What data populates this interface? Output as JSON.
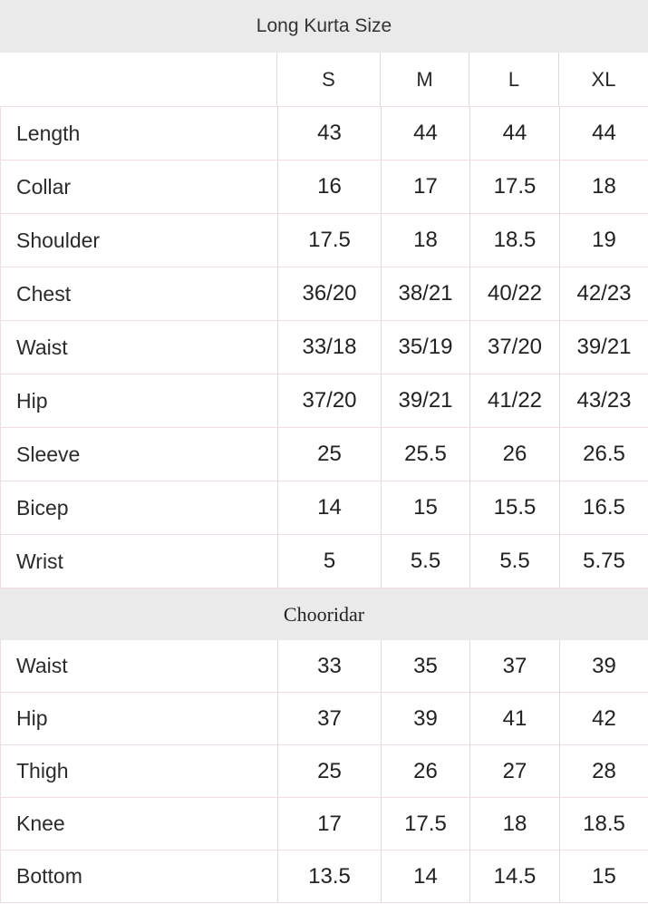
{
  "chart_data": [
    {
      "type": "table",
      "title": "Long Kurta Size",
      "columns": [
        "",
        "S",
        "M",
        "L",
        "XL"
      ],
      "rows": [
        {
          "label": "Length",
          "values": [
            "43",
            "44",
            "44",
            "44"
          ]
        },
        {
          "label": "Collar",
          "values": [
            "16",
            "17",
            "17.5",
            "18"
          ]
        },
        {
          "label": "Shoulder",
          "values": [
            "17.5",
            "18",
            "18.5",
            "19"
          ]
        },
        {
          "label": "Chest",
          "values": [
            "36/20",
            "38/21",
            "40/22",
            "42/23"
          ]
        },
        {
          "label": "Waist",
          "values": [
            "33/18",
            "35/19",
            "37/20",
            "39/21"
          ]
        },
        {
          "label": "Hip",
          "values": [
            "37/20",
            "39/21",
            "41/22",
            "43/23"
          ]
        },
        {
          "label": "Sleeve",
          "values": [
            "25",
            "25.5",
            "26",
            "26.5"
          ]
        },
        {
          "label": "Bicep",
          "values": [
            "14",
            "15",
            "15.5",
            "16.5"
          ]
        },
        {
          "label": "Wrist",
          "values": [
            "5",
            "5.5",
            "5.5",
            "5.75"
          ]
        }
      ]
    },
    {
      "type": "table",
      "title": "Chooridar",
      "columns": [
        "",
        "S",
        "M",
        "L",
        "XL"
      ],
      "rows": [
        {
          "label": "Waist",
          "values": [
            "33",
            "35",
            "37",
            "39"
          ]
        },
        {
          "label": "Hip",
          "values": [
            "37",
            "39",
            "41",
            "42"
          ]
        },
        {
          "label": "Thigh",
          "values": [
            "25",
            "26",
            "27",
            "28"
          ]
        },
        {
          "label": "Knee",
          "values": [
            "17",
            "17.5",
            "18",
            "18.5"
          ]
        },
        {
          "label": "Bottom",
          "values": [
            "13.5",
            "14",
            "14.5",
            "15"
          ]
        }
      ]
    }
  ],
  "style": {
    "band_background": "#eaeaea",
    "row_separator_color": "#f1dfdf",
    "column_separator_color": "#dadada",
    "title_color": "#333333",
    "value_color": "#222222"
  }
}
